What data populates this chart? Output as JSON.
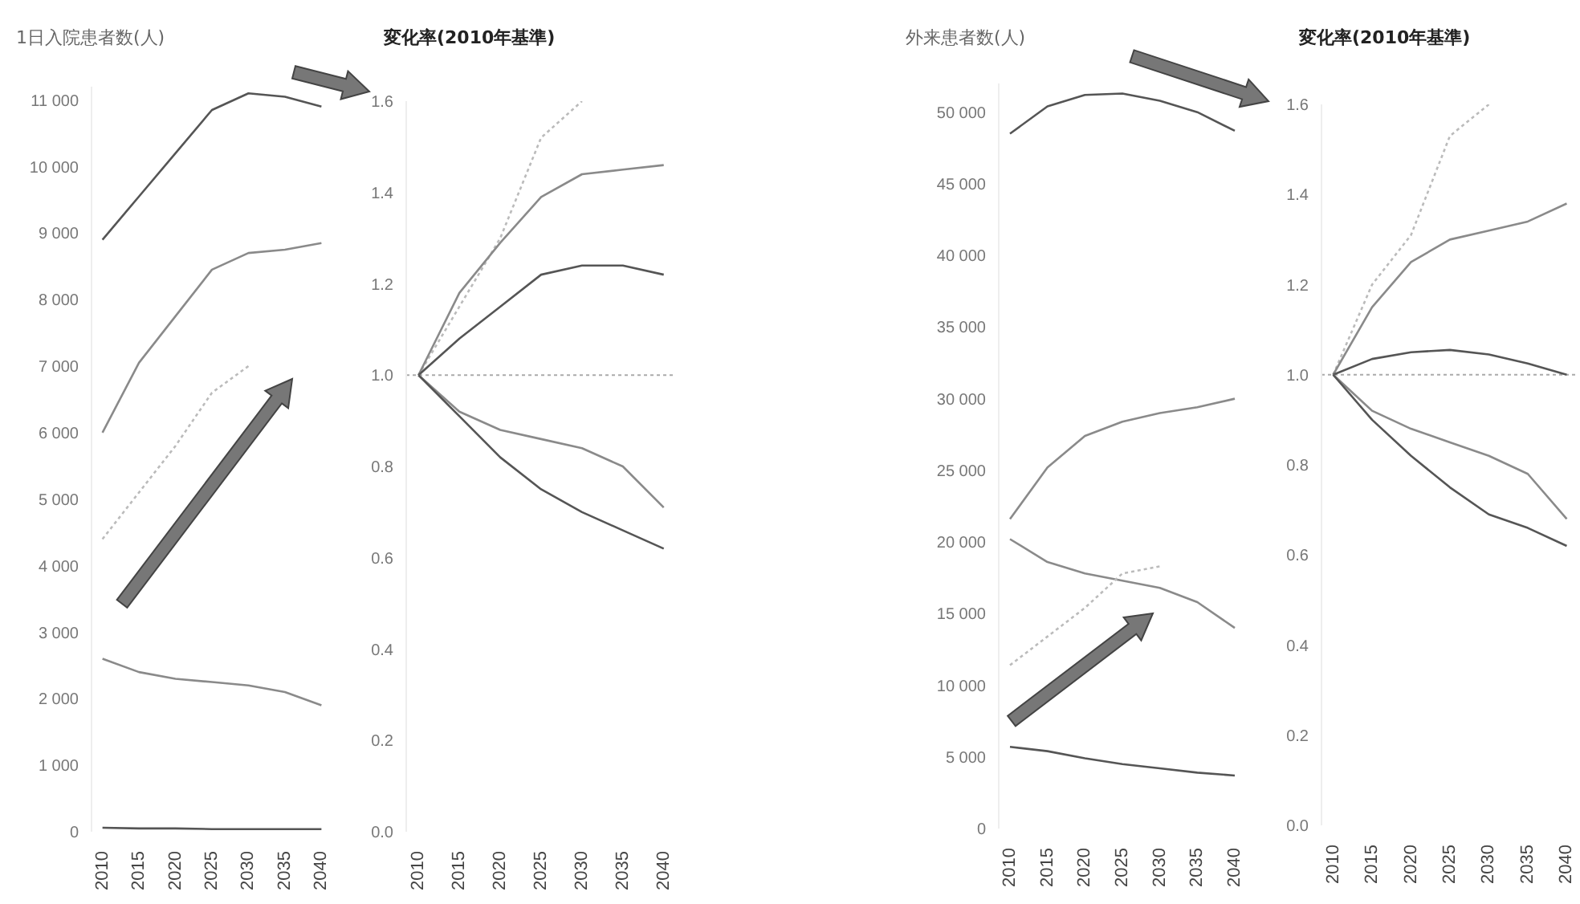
{
  "chart_data": [
    {
      "type": "line",
      "ylabel": "1日入院患者数(人)",
      "categories": [
        "2010",
        "2015",
        "2020",
        "2025",
        "2030",
        "2035",
        "2040"
      ],
      "ylim": [
        0,
        11200
      ],
      "yticks": [
        {
          "value": 0,
          "label": "0"
        },
        {
          "value": 1000,
          "label": "1 000"
        },
        {
          "value": 2000,
          "label": "2 000"
        },
        {
          "value": 3000,
          "label": "3 000"
        },
        {
          "value": 4000,
          "label": "4 000"
        },
        {
          "value": 5000,
          "label": "5 000"
        },
        {
          "value": 6000,
          "label": "6 000"
        },
        {
          "value": 7000,
          "label": "7 000"
        },
        {
          "value": 8000,
          "label": "8 000"
        },
        {
          "value": 9000,
          "label": "9 000"
        },
        {
          "value": 10000,
          "label": "10 000"
        },
        {
          "value": 11000,
          "label": "11 000"
        }
      ],
      "series": [
        {
          "color": "#555555",
          "values": [
            8900,
            9550,
            10200,
            10850,
            11100,
            11050,
            10900
          ]
        },
        {
          "color": "#8a8a8a",
          "values": [
            6000,
            7050,
            7750,
            8450,
            8700,
            8750,
            8850
          ]
        },
        {
          "color": "#bbbbbb",
          "line_style": "dotted",
          "values": [
            4400,
            5100,
            5800,
            6600,
            7000,
            null,
            null
          ]
        },
        {
          "color": "#8a8a8a",
          "values": [
            2600,
            2400,
            2300,
            2250,
            2200,
            2100,
            1900
          ]
        },
        {
          "color": "#555555",
          "values": [
            60,
            50,
            50,
            40,
            40,
            40,
            40
          ]
        }
      ]
    },
    {
      "type": "line",
      "ylabel": "変化率(2010年基準)",
      "categories": [
        "2010",
        "2015",
        "2020",
        "2025",
        "2030",
        "2035",
        "2040"
      ],
      "ylim": [
        0,
        1.6
      ],
      "yticks": [
        {
          "value": 0,
          "label": "0.0"
        },
        {
          "value": 0.2,
          "label": "0.2"
        },
        {
          "value": 0.4,
          "label": "0.4"
        },
        {
          "value": 0.6,
          "label": "0.6"
        },
        {
          "value": 0.8,
          "label": "0.8"
        },
        {
          "value": 1,
          "label": "1.0"
        },
        {
          "value": 1.2,
          "label": "1.2"
        },
        {
          "value": 1.4,
          "label": "1.4"
        },
        {
          "value": 1.6,
          "label": "1.6"
        }
      ],
      "ref_lines": [
        {
          "axis": "y",
          "value": 1,
          "color": "#aaaaaa",
          "line_style": "dotted"
        }
      ],
      "series": [
        {
          "color": "#bbbbbb",
          "line_style": "dotted",
          "values": [
            1,
            1.15,
            1.3,
            1.52,
            1.6,
            null,
            null
          ]
        },
        {
          "color": "#8a8a8a",
          "values": [
            1,
            1.18,
            1.29,
            1.39,
            1.44,
            1.45,
            1.46
          ]
        },
        {
          "color": "#555555",
          "values": [
            1,
            1.08,
            1.15,
            1.22,
            1.24,
            1.24,
            1.22
          ]
        },
        {
          "color": "#8a8a8a",
          "values": [
            1,
            0.92,
            0.88,
            0.86,
            0.84,
            0.8,
            0.71
          ]
        },
        {
          "color": "#555555",
          "values": [
            1,
            0.91,
            0.82,
            0.75,
            0.7,
            0.66,
            0.62
          ]
        }
      ]
    },
    {
      "type": "line",
      "ylabel": "外来患者数(人)",
      "categories": [
        "2010",
        "2015",
        "2020",
        "2025",
        "2030",
        "2035",
        "2040"
      ],
      "ylim": [
        0,
        52000
      ],
      "yticks": [
        {
          "value": 0,
          "label": "0"
        },
        {
          "value": 5000,
          "label": "5 000"
        },
        {
          "value": 10000,
          "label": "10 000"
        },
        {
          "value": 15000,
          "label": "15 000"
        },
        {
          "value": 20000,
          "label": "20 000"
        },
        {
          "value": 25000,
          "label": "25 000"
        },
        {
          "value": 30000,
          "label": "30 000"
        },
        {
          "value": 35000,
          "label": "35 000"
        },
        {
          "value": 40000,
          "label": "40 000"
        },
        {
          "value": 45000,
          "label": "45 000"
        },
        {
          "value": 50000,
          "label": "50 000"
        }
      ],
      "series": [
        {
          "color": "#555555",
          "values": [
            48500,
            50400,
            51200,
            51300,
            50800,
            50000,
            48700
          ]
        },
        {
          "color": "#8a8a8a",
          "values": [
            21600,
            25200,
            27400,
            28400,
            29000,
            29400,
            30000
          ]
        },
        {
          "color": "#8a8a8a",
          "values": [
            20200,
            18600,
            17800,
            17300,
            16800,
            15800,
            14000
          ]
        },
        {
          "color": "#bbbbbb",
          "line_style": "dotted",
          "values": [
            11400,
            13400,
            15400,
            17800,
            18300,
            null,
            null
          ]
        },
        {
          "color": "#555555",
          "values": [
            5700,
            5400,
            4900,
            4500,
            4200,
            3900,
            3700
          ]
        }
      ]
    },
    {
      "type": "line",
      "ylabel": "変化率(2010年基準)",
      "categories": [
        "2010",
        "2015",
        "2020",
        "2025",
        "2030",
        "2035",
        "2040"
      ],
      "ylim": [
        0,
        1.6
      ],
      "yticks": [
        {
          "value": 0,
          "label": "0.0"
        },
        {
          "value": 0.2,
          "label": "0.2"
        },
        {
          "value": 0.4,
          "label": "0.4"
        },
        {
          "value": 0.6,
          "label": "0.6"
        },
        {
          "value": 0.8,
          "label": "0.8"
        },
        {
          "value": 1,
          "label": "1.0"
        },
        {
          "value": 1.2,
          "label": "1.2"
        },
        {
          "value": 1.4,
          "label": "1.4"
        },
        {
          "value": 1.6,
          "label": "1.6"
        }
      ],
      "ref_lines": [
        {
          "axis": "y",
          "value": 1,
          "color": "#aaaaaa",
          "line_style": "dotted"
        }
      ],
      "series": [
        {
          "color": "#bbbbbb",
          "line_style": "dotted",
          "values": [
            1,
            1.2,
            1.31,
            1.53,
            1.6,
            null,
            null
          ]
        },
        {
          "color": "#8a8a8a",
          "values": [
            1,
            1.15,
            1.25,
            1.3,
            1.32,
            1.34,
            1.38
          ]
        },
        {
          "color": "#555555",
          "values": [
            1,
            1.035,
            1.05,
            1.055,
            1.045,
            1.025,
            1
          ]
        },
        {
          "color": "#8a8a8a",
          "values": [
            1,
            0.92,
            0.88,
            0.85,
            0.82,
            0.78,
            0.68
          ]
        },
        {
          "color": "#555555",
          "values": [
            1,
            0.9,
            0.82,
            0.75,
            0.69,
            0.66,
            0.62
          ]
        }
      ]
    }
  ]
}
